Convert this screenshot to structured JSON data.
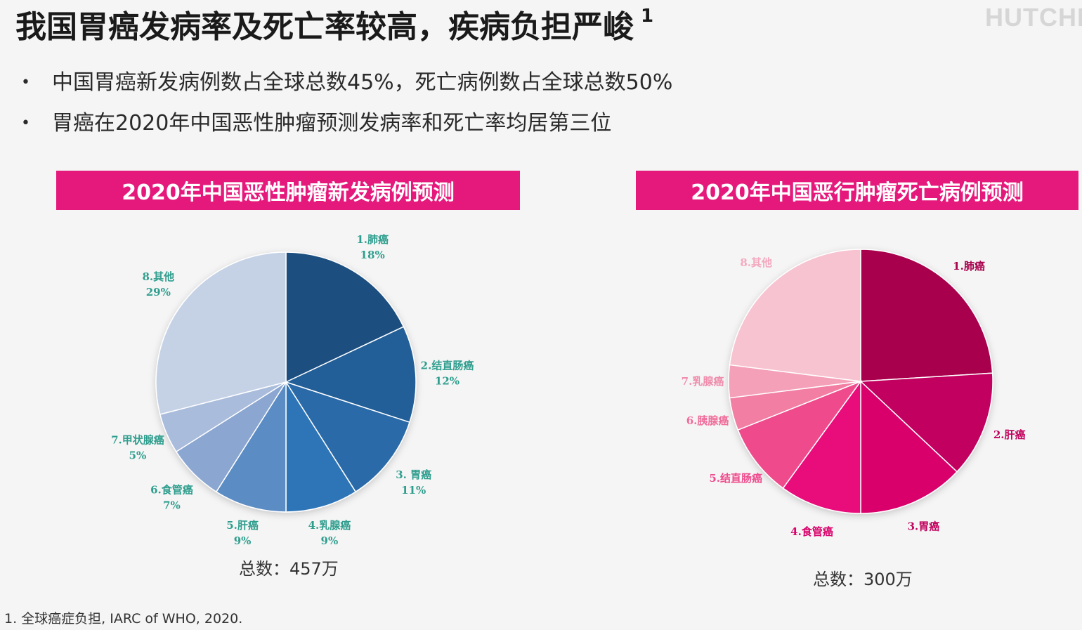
{
  "slide": {
    "title": "我国胃癌发病率及死亡率较高，疾病负担严峻",
    "title_ref": "1",
    "brand": "HUTCHM",
    "bullets": [
      "中国胃癌新发病例数占全球总数45%，死亡病例数占全球总数50%",
      "胃癌在2020年中国恶性肿瘤预测发病率和死亡率均居第三位"
    ],
    "bullet_symbol": "•",
    "footnote": "1. 全球癌症负担, IARC of WHO, 2020."
  },
  "chart_data": [
    {
      "type": "pie",
      "title": "2020年中国恶性肿瘤新发病例预测",
      "total_label": "总数：457万",
      "label_color": "#2f9e8e",
      "slices": [
        {
          "label": "1.肺癌",
          "value": 18,
          "value_label": "18%",
          "color": "#1f4f80"
        },
        {
          "label": "2.结直肠癌",
          "value": 12,
          "value_label": "12%",
          "color": "#245f98"
        },
        {
          "label": "3. 胃癌",
          "value": 11,
          "value_label": "11%",
          "color": "#2a6aa8"
        },
        {
          "label": "4.乳腺癌",
          "value": 9,
          "value_label": "9%",
          "color": "#2f74b8"
        },
        {
          "label": "5.肝癌",
          "value": 9,
          "value_label": "9%",
          "color": "#5b8cc4"
        },
        {
          "label": "6.食管癌",
          "value": 7,
          "value_label": "7%",
          "color": "#8aa6d1"
        },
        {
          "label": "7.甲状腺癌",
          "value": 5,
          "value_label": "5%",
          "color": "#a9bcdc"
        },
        {
          "label": "8.其他",
          "value": 29,
          "value_label": "29%",
          "color": "#c5d2e6"
        }
      ]
    },
    {
      "type": "pie",
      "title": "2020年中国恶行肿瘤死亡病例预测",
      "total_label": "总数：300万",
      "slices": [
        {
          "label": "1.肺癌",
          "value": 24,
          "color": "#a8004d",
          "label_color": "#a8004d"
        },
        {
          "label": "2.肝癌",
          "value": 13,
          "color": "#c2045f",
          "label_color": "#c2045f"
        },
        {
          "label": "3.胃癌",
          "value": 13,
          "color": "#d9036c",
          "label_color": "#c2045f"
        },
        {
          "label": "4.食管癌",
          "value": 10,
          "color": "#e8097a",
          "label_color": "#d9036c"
        },
        {
          "label": "5.结直肠癌",
          "value": 9,
          "color": "#ef4b8c",
          "label_color": "#ef4b8c"
        },
        {
          "label": "6.胰腺癌",
          "value": 4,
          "color": "#f27ea3",
          "label_color": "#f06c9a"
        },
        {
          "label": "7.乳腺癌",
          "value": 4,
          "color": "#f4a0b8",
          "label_color": "#f08cac"
        },
        {
          "label": "8.其他",
          "value": 23,
          "color": "#f7c3d1",
          "label_color": "#f4a8bf"
        }
      ]
    }
  ]
}
